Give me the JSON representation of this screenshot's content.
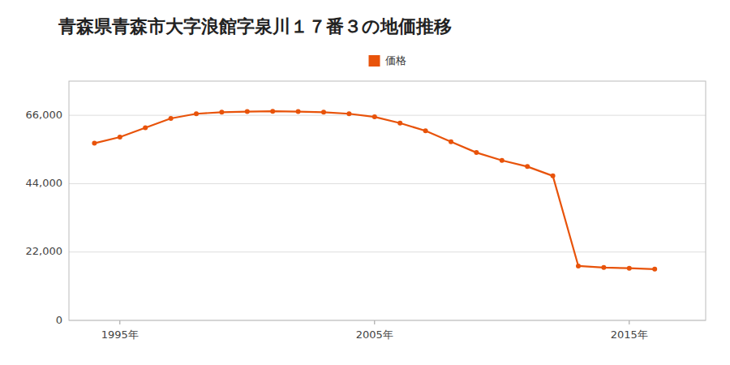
{
  "chart_data": {
    "type": "line",
    "title": "青森県青森市大字浪館字泉川１７番３の地価推移",
    "x": [
      1994,
      1995,
      1996,
      1997,
      1998,
      1999,
      2000,
      2001,
      2002,
      2003,
      2004,
      2005,
      2006,
      2007,
      2008,
      2009,
      2010,
      2011,
      2012,
      2013,
      2014,
      2015,
      2016
    ],
    "series": [
      {
        "name": "価格",
        "color": "#e8530a",
        "marker": "circle",
        "values": [
          57000,
          59000,
          62000,
          65000,
          66500,
          67000,
          67200,
          67300,
          67200,
          67000,
          66500,
          65500,
          63500,
          61000,
          57500,
          54000,
          51500,
          49500,
          46500,
          17500,
          17000,
          16800,
          16500
        ]
      }
    ],
    "xlim": [
      1993,
      2018
    ],
    "ylim": [
      0,
      77000
    ],
    "xticks": [
      {
        "value": 1995,
        "label": "1995年"
      },
      {
        "value": 2005,
        "label": "2005年"
      },
      {
        "value": 2015,
        "label": "2015年"
      }
    ],
    "yticks": [
      0,
      {
        "value": 22000,
        "label": "22,000"
      },
      {
        "value": 44000,
        "label": "44,000"
      },
      {
        "value": 66000,
        "label": "66,000"
      }
    ],
    "grid": true,
    "legend": "top"
  }
}
